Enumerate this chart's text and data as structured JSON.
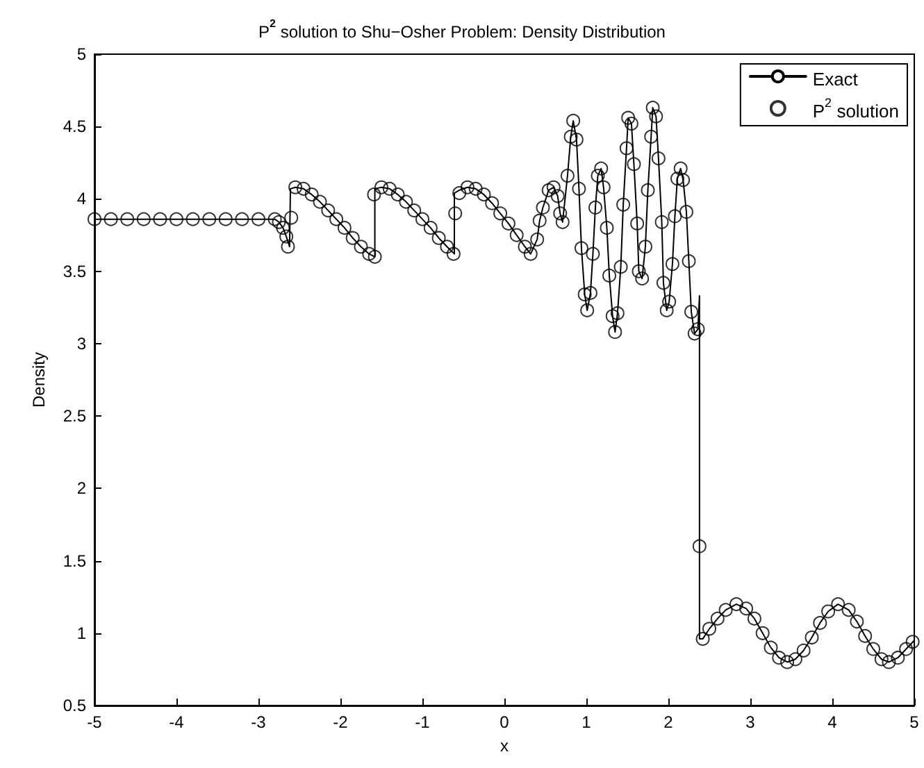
{
  "chart_data": {
    "type": "line",
    "title": "P$^{2}$ solution to Shu−Osher Problem: Density Distribution",
    "xlabel": "x",
    "ylabel": "Density",
    "xlim": [
      -5,
      5
    ],
    "xticks": [
      -5,
      -4,
      -3,
      -2,
      -1,
      0,
      1,
      2,
      3,
      4,
      5
    ],
    "ylim": [
      0.5,
      5
    ],
    "yticks": [
      0.5,
      1,
      1.5,
      2,
      2.5,
      3,
      3.5,
      4,
      4.5,
      5
    ],
    "grid": false,
    "legend": "top right",
    "series": [
      {
        "name": "Exact",
        "color": "#000000",
        "marker": "none",
        "line_style": "solid",
        "x": [
          -5,
          -2.8,
          -2.75,
          -2.7,
          -2.66,
          -2.62,
          -2.61,
          -2.55,
          -2.45,
          -2.35,
          -2.25,
          -2.15,
          -2.05,
          -1.95,
          -1.85,
          -1.75,
          -1.65,
          -1.58,
          -1.58,
          -1.5,
          -1.4,
          -1.3,
          -1.2,
          -1.1,
          -1.0,
          -0.9,
          -0.8,
          -0.7,
          -0.61,
          -0.61,
          -0.55,
          -0.45,
          -0.35,
          -0.25,
          -0.15,
          -0.05,
          0.05,
          0.15,
          0.25,
          0.32,
          0.4,
          0.43,
          0.47,
          0.54,
          0.6,
          0.65,
          0.68,
          0.71,
          0.77,
          0.81,
          0.84,
          0.88,
          0.91,
          0.94,
          0.98,
          1.01,
          1.05,
          1.08,
          1.11,
          1.14,
          1.18,
          1.21,
          1.25,
          1.28,
          1.32,
          1.35,
          1.38,
          1.42,
          1.45,
          1.49,
          1.51,
          1.55,
          1.58,
          1.62,
          1.64,
          1.68,
          1.72,
          1.75,
          1.79,
          1.81,
          1.85,
          1.88,
          1.92,
          1.94,
          1.98,
          2.01,
          2.05,
          2.08,
          2.11,
          2.15,
          2.18,
          2.22,
          2.25,
          2.28,
          2.32,
          2.36,
          2.38,
          2.38,
          2.42,
          2.5,
          2.6,
          2.7,
          2.83,
          2.95,
          3.05,
          3.15,
          3.25,
          3.35,
          3.45,
          3.55,
          3.65,
          3.75,
          3.85,
          3.95,
          4.07,
          4.2,
          4.3,
          4.4,
          4.5,
          4.6,
          4.69,
          4.8,
          4.9,
          5
        ],
        "values": [
          3.86,
          3.86,
          3.84,
          3.8,
          3.74,
          3.67,
          4.07,
          4.08,
          4.07,
          4.03,
          3.98,
          3.92,
          3.86,
          3.8,
          3.73,
          3.67,
          3.62,
          3.6,
          4.07,
          4.08,
          4.07,
          4.03,
          3.98,
          3.92,
          3.86,
          3.8,
          3.73,
          3.67,
          3.62,
          4.04,
          4.06,
          4.08,
          4.07,
          4.03,
          3.97,
          3.9,
          3.83,
          3.75,
          3.67,
          3.62,
          3.72,
          3.85,
          3.94,
          4.06,
          4.08,
          4.02,
          3.9,
          3.84,
          4.16,
          4.43,
          4.54,
          4.41,
          4.07,
          3.66,
          3.34,
          3.23,
          3.35,
          3.62,
          3.94,
          4.16,
          4.21,
          4.08,
          3.8,
          3.47,
          3.19,
          3.08,
          3.21,
          3.53,
          3.96,
          4.35,
          4.56,
          4.52,
          4.24,
          3.83,
          3.5,
          3.45,
          3.67,
          4.06,
          4.43,
          4.63,
          4.57,
          4.28,
          3.84,
          3.42,
          3.23,
          3.29,
          3.55,
          3.88,
          4.14,
          4.21,
          4.13,
          3.91,
          3.57,
          3.22,
          3.07,
          3.1,
          3.33,
          0.96,
          0.96,
          1.03,
          1.1,
          1.16,
          1.2,
          1.17,
          1.1,
          1.0,
          0.9,
          0.83,
          0.8,
          0.82,
          0.88,
          0.97,
          1.07,
          1.15,
          1.2,
          1.16,
          1.08,
          0.98,
          0.89,
          0.82,
          0.8,
          0.83,
          0.89,
          0.95
        ]
      },
      {
        "name": "P$^{2}$ solution",
        "type": "scatter",
        "color": "#000000",
        "marker": "circle",
        "x": [
          -5,
          -4.8,
          -4.6,
          -4.4,
          -4.2,
          -4.0,
          -3.8,
          -3.6,
          -3.4,
          -3.2,
          -3.0,
          -2.8,
          -2.75,
          -2.7,
          -2.66,
          -2.64,
          -2.6,
          -2.55,
          -2.45,
          -2.35,
          -2.25,
          -2.15,
          -2.05,
          -1.95,
          -1.85,
          -1.75,
          -1.65,
          -1.58,
          -1.59,
          -1.5,
          -1.4,
          -1.3,
          -1.2,
          -1.1,
          -1.0,
          -0.9,
          -0.8,
          -0.7,
          -0.62,
          -0.6,
          -0.55,
          -0.45,
          -0.35,
          -0.25,
          -0.15,
          -0.05,
          0.05,
          0.15,
          0.25,
          0.32,
          0.4,
          0.43,
          0.47,
          0.54,
          0.6,
          0.65,
          0.68,
          0.71,
          0.77,
          0.81,
          0.84,
          0.88,
          0.91,
          0.94,
          0.98,
          1.01,
          1.05,
          1.08,
          1.11,
          1.14,
          1.18,
          1.21,
          1.25,
          1.28,
          1.32,
          1.35,
          1.38,
          1.42,
          1.45,
          1.49,
          1.51,
          1.55,
          1.58,
          1.62,
          1.64,
          1.68,
          1.72,
          1.75,
          1.79,
          1.81,
          1.85,
          1.88,
          1.92,
          1.94,
          1.98,
          2.01,
          2.05,
          2.08,
          2.11,
          2.15,
          2.18,
          2.22,
          2.25,
          2.28,
          2.32,
          2.36,
          2.38,
          2.42,
          2.5,
          2.6,
          2.7,
          2.83,
          2.95,
          3.05,
          3.15,
          3.25,
          3.35,
          3.45,
          3.55,
          3.65,
          3.75,
          3.85,
          3.95,
          4.07,
          4.2,
          4.3,
          4.4,
          4.5,
          4.6,
          4.69,
          4.8,
          4.9,
          4.98
        ],
        "values": [
          3.86,
          3.86,
          3.86,
          3.86,
          3.86,
          3.86,
          3.86,
          3.86,
          3.86,
          3.86,
          3.86,
          3.86,
          3.84,
          3.8,
          3.74,
          3.67,
          3.87,
          4.08,
          4.07,
          4.03,
          3.98,
          3.92,
          3.86,
          3.8,
          3.73,
          3.67,
          3.62,
          3.6,
          4.03,
          4.08,
          4.07,
          4.03,
          3.98,
          3.92,
          3.86,
          3.8,
          3.73,
          3.67,
          3.62,
          3.9,
          4.04,
          4.08,
          4.07,
          4.03,
          3.97,
          3.9,
          3.83,
          3.75,
          3.67,
          3.62,
          3.72,
          3.85,
          3.94,
          4.06,
          4.08,
          4.02,
          3.9,
          3.84,
          4.16,
          4.43,
          4.54,
          4.41,
          4.07,
          3.66,
          3.34,
          3.23,
          3.35,
          3.62,
          3.94,
          4.16,
          4.21,
          4.08,
          3.8,
          3.47,
          3.19,
          3.08,
          3.21,
          3.53,
          3.96,
          4.35,
          4.56,
          4.52,
          4.24,
          3.83,
          3.5,
          3.45,
          3.67,
          4.06,
          4.43,
          4.63,
          4.57,
          4.28,
          3.84,
          3.42,
          3.23,
          3.29,
          3.55,
          3.88,
          4.14,
          4.21,
          4.13,
          3.91,
          3.57,
          3.22,
          3.07,
          3.1,
          1.6,
          0.96,
          1.03,
          1.1,
          1.16,
          1.2,
          1.17,
          1.1,
          1.0,
          0.9,
          0.83,
          0.8,
          0.82,
          0.88,
          0.97,
          1.07,
          1.15,
          1.2,
          1.16,
          1.08,
          0.98,
          0.89,
          0.82,
          0.8,
          0.83,
          0.89,
          0.94
        ]
      }
    ]
  }
}
